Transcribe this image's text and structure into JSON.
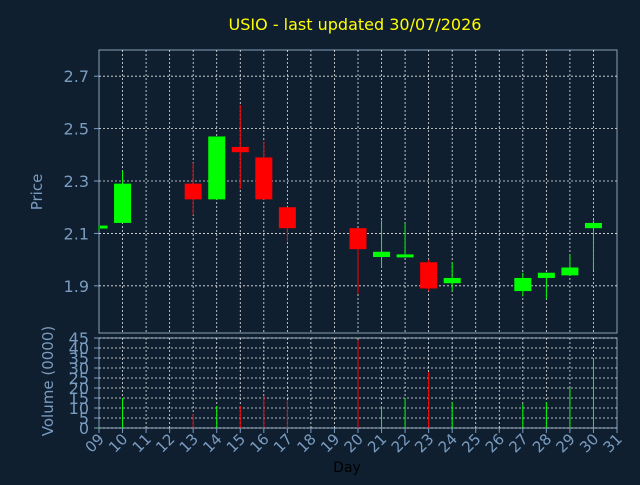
{
  "title": "USIO - last updated 30/07/2026",
  "colors": {
    "background": "#0f1f30",
    "title": "#ffff00",
    "axis_text": "#7a9cc0",
    "grid": "#e8e8e8",
    "up": "#00ff00",
    "down": "#ff0000",
    "xlabel": "#000000"
  },
  "chart_data": [
    {
      "type": "candlestick",
      "ylabel": "Price",
      "ylim": [
        1.72,
        2.8
      ],
      "yticks": [
        "1.9",
        "2.1",
        "2.3",
        "2.5",
        "2.7"
      ],
      "xlim": [
        9,
        31
      ],
      "xtick_labels": [
        "09",
        "10",
        "11",
        "12",
        "13",
        "14",
        "15",
        "16",
        "17",
        "18",
        "19",
        "20",
        "21",
        "22",
        "23",
        "24",
        "25",
        "26",
        "27",
        "28",
        "29",
        "30",
        "31"
      ],
      "grid": true,
      "candles": [
        {
          "day": 9,
          "open": 2.12,
          "high": 2.13,
          "low": 2.11,
          "close": 2.13
        },
        {
          "day": 10,
          "open": 2.14,
          "high": 2.34,
          "low": 2.14,
          "close": 2.29
        },
        {
          "day": 13,
          "open": 2.29,
          "high": 2.37,
          "low": 2.17,
          "close": 2.23
        },
        {
          "day": 14,
          "open": 2.23,
          "high": 2.47,
          "low": 2.23,
          "close": 2.47
        },
        {
          "day": 15,
          "open": 2.43,
          "high": 2.59,
          "low": 2.27,
          "close": 2.41
        },
        {
          "day": 16,
          "open": 2.39,
          "high": 2.45,
          "low": 2.23,
          "close": 2.23
        },
        {
          "day": 17,
          "open": 2.2,
          "high": 2.2,
          "low": 2.07,
          "close": 2.12
        },
        {
          "day": 20,
          "open": 2.12,
          "high": 2.12,
          "low": 1.87,
          "close": 2.04
        },
        {
          "day": 21,
          "open": 2.01,
          "high": 2.15,
          "low": 1.97,
          "close": 2.03
        },
        {
          "day": 22,
          "open": 2.01,
          "high": 2.14,
          "low": 2.01,
          "close": 2.02
        },
        {
          "day": 23,
          "open": 1.99,
          "high": 2.0,
          "low": 1.88,
          "close": 1.89
        },
        {
          "day": 24,
          "open": 1.91,
          "high": 1.99,
          "low": 1.88,
          "close": 1.93
        },
        {
          "day": 27,
          "open": 1.88,
          "high": 1.95,
          "low": 1.86,
          "close": 1.93
        },
        {
          "day": 28,
          "open": 1.93,
          "high": 1.95,
          "low": 1.85,
          "close": 1.95
        },
        {
          "day": 29,
          "open": 1.94,
          "high": 2.02,
          "low": 1.94,
          "close": 1.97
        },
        {
          "day": 30,
          "open": 2.12,
          "high": 2.15,
          "low": 1.96,
          "close": 2.14
        }
      ]
    },
    {
      "type": "bar",
      "ylabel": "Volume (0000)",
      "xlabel": "Day",
      "ylim": [
        0,
        45
      ],
      "yticks": [
        "0",
        "5",
        "10",
        "15",
        "20",
        "25",
        "30",
        "35",
        "40",
        "45"
      ],
      "xlim": [
        9,
        31
      ],
      "grid": true,
      "bars": [
        {
          "day": 9,
          "value": 0.5,
          "direction": "up"
        },
        {
          "day": 10,
          "value": 15,
          "direction": "up"
        },
        {
          "day": 13,
          "value": 7,
          "direction": "down"
        },
        {
          "day": 14,
          "value": 11,
          "direction": "up"
        },
        {
          "day": 15,
          "value": 11,
          "direction": "down"
        },
        {
          "day": 16,
          "value": 16,
          "direction": "down"
        },
        {
          "day": 17,
          "value": 14,
          "direction": "down"
        },
        {
          "day": 20,
          "value": 44,
          "direction": "down"
        },
        {
          "day": 21,
          "value": 11,
          "direction": "up"
        },
        {
          "day": 22,
          "value": 15,
          "direction": "up"
        },
        {
          "day": 23,
          "value": 28,
          "direction": "down"
        },
        {
          "day": 24,
          "value": 13,
          "direction": "up"
        },
        {
          "day": 27,
          "value": 12,
          "direction": "up"
        },
        {
          "day": 28,
          "value": 13,
          "direction": "up"
        },
        {
          "day": 29,
          "value": 20,
          "direction": "up"
        },
        {
          "day": 30,
          "value": 35,
          "direction": "up"
        }
      ]
    }
  ]
}
